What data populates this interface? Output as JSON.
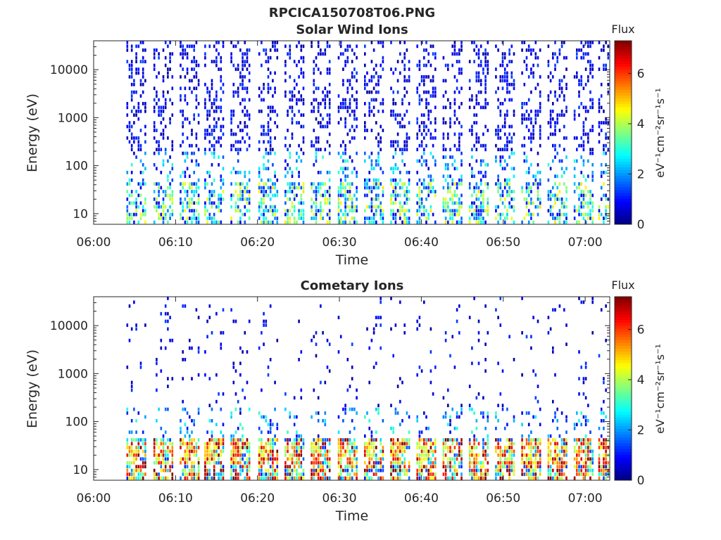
{
  "figure": {
    "title": "RPCICA150708T06.PNG"
  },
  "chart_data": [
    {
      "type": "heatmap",
      "title": "Solar Wind Ions",
      "xlabel": "Time",
      "ylabel": "Energy (eV)",
      "x_ticks": [
        "06:00",
        "06:10",
        "06:20",
        "06:30",
        "06:40",
        "06:50",
        "07:00"
      ],
      "xlim_minutes": [
        0,
        63
      ],
      "y_scale": "log",
      "y_ticks": [
        "10",
        "100",
        "1000",
        "10000"
      ],
      "ylim": [
        6,
        40000
      ],
      "colorbar": {
        "label": "Flux",
        "units": "eV⁻¹cm⁻²sr⁻¹s⁻¹",
        "ticks": [
          "0",
          "2",
          "4",
          "6"
        ],
        "range": [
          0,
          7.3
        ],
        "colormap": "jet"
      },
      "sweep_start_minutes": [
        4,
        7.3,
        10.5,
        13.5,
        16.7,
        20.1,
        23.3,
        26.5,
        29.8,
        33.0,
        36.2,
        39.4,
        42.6,
        45.8,
        49.0,
        52.2,
        55.4,
        58.6,
        61.6
      ],
      "low_energy_peak_flux": 4.2,
      "grid": false
    },
    {
      "type": "heatmap",
      "title": "Cometary Ions",
      "xlabel": "Time",
      "ylabel": "Energy (eV)",
      "x_ticks": [
        "06:00",
        "06:10",
        "06:20",
        "06:30",
        "06:40",
        "06:50",
        "07:00"
      ],
      "xlim_minutes": [
        0,
        63
      ],
      "y_scale": "log",
      "y_ticks": [
        "10",
        "100",
        "1000",
        "10000"
      ],
      "ylim": [
        6,
        40000
      ],
      "colorbar": {
        "label": "Flux",
        "units": "eV⁻¹cm⁻²sr⁻¹s⁻¹",
        "ticks": [
          "0",
          "2",
          "4",
          "6"
        ],
        "range": [
          0,
          7.3
        ],
        "colormap": "jet"
      },
      "sweep_start_minutes": [
        4,
        7.3,
        10.5,
        13.5,
        16.7,
        20.1,
        23.3,
        26.5,
        29.8,
        33.0,
        36.2,
        39.4,
        42.6,
        45.8,
        49.0,
        52.2,
        55.4,
        58.6,
        61.6
      ],
      "low_energy_peak_flux": 6.8,
      "grid": false
    }
  ],
  "colors": {
    "axis": "#262626",
    "background": "#ffffff"
  }
}
